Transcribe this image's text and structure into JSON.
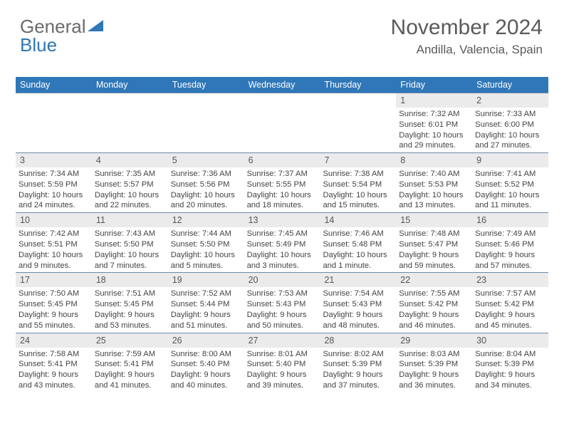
{
  "brand": {
    "part1": "General",
    "part2": "Blue"
  },
  "header": {
    "title": "November 2024",
    "subtitle": "Andilla, Valencia, Spain"
  },
  "colors": {
    "header_bar": "#2f77b8",
    "day_header_bg": "#ebebeb",
    "rule": "#6b8ba8",
    "text": "#444444",
    "brand_gray": "#6a6a6a",
    "brand_blue": "#2f77b8"
  },
  "fonts": {
    "body_pt": 11,
    "title_pt": 30,
    "subtitle_pt": 17,
    "dow_pt": 12.5
  },
  "days_of_week": [
    "Sunday",
    "Monday",
    "Tuesday",
    "Wednesday",
    "Thursday",
    "Friday",
    "Saturday"
  ],
  "weeks": [
    [
      {
        "num": "",
        "sunrise": "",
        "sunset": "",
        "daylight": ""
      },
      {
        "num": "",
        "sunrise": "",
        "sunset": "",
        "daylight": ""
      },
      {
        "num": "",
        "sunrise": "",
        "sunset": "",
        "daylight": ""
      },
      {
        "num": "",
        "sunrise": "",
        "sunset": "",
        "daylight": ""
      },
      {
        "num": "",
        "sunrise": "",
        "sunset": "",
        "daylight": ""
      },
      {
        "num": "1",
        "sunrise": "Sunrise: 7:32 AM",
        "sunset": "Sunset: 6:01 PM",
        "daylight": "Daylight: 10 hours and 29 minutes."
      },
      {
        "num": "2",
        "sunrise": "Sunrise: 7:33 AM",
        "sunset": "Sunset: 6:00 PM",
        "daylight": "Daylight: 10 hours and 27 minutes."
      }
    ],
    [
      {
        "num": "3",
        "sunrise": "Sunrise: 7:34 AM",
        "sunset": "Sunset: 5:59 PM",
        "daylight": "Daylight: 10 hours and 24 minutes."
      },
      {
        "num": "4",
        "sunrise": "Sunrise: 7:35 AM",
        "sunset": "Sunset: 5:57 PM",
        "daylight": "Daylight: 10 hours and 22 minutes."
      },
      {
        "num": "5",
        "sunrise": "Sunrise: 7:36 AM",
        "sunset": "Sunset: 5:56 PM",
        "daylight": "Daylight: 10 hours and 20 minutes."
      },
      {
        "num": "6",
        "sunrise": "Sunrise: 7:37 AM",
        "sunset": "Sunset: 5:55 PM",
        "daylight": "Daylight: 10 hours and 18 minutes."
      },
      {
        "num": "7",
        "sunrise": "Sunrise: 7:38 AM",
        "sunset": "Sunset: 5:54 PM",
        "daylight": "Daylight: 10 hours and 15 minutes."
      },
      {
        "num": "8",
        "sunrise": "Sunrise: 7:40 AM",
        "sunset": "Sunset: 5:53 PM",
        "daylight": "Daylight: 10 hours and 13 minutes."
      },
      {
        "num": "9",
        "sunrise": "Sunrise: 7:41 AM",
        "sunset": "Sunset: 5:52 PM",
        "daylight": "Daylight: 10 hours and 11 minutes."
      }
    ],
    [
      {
        "num": "10",
        "sunrise": "Sunrise: 7:42 AM",
        "sunset": "Sunset: 5:51 PM",
        "daylight": "Daylight: 10 hours and 9 minutes."
      },
      {
        "num": "11",
        "sunrise": "Sunrise: 7:43 AM",
        "sunset": "Sunset: 5:50 PM",
        "daylight": "Daylight: 10 hours and 7 minutes."
      },
      {
        "num": "12",
        "sunrise": "Sunrise: 7:44 AM",
        "sunset": "Sunset: 5:50 PM",
        "daylight": "Daylight: 10 hours and 5 minutes."
      },
      {
        "num": "13",
        "sunrise": "Sunrise: 7:45 AM",
        "sunset": "Sunset: 5:49 PM",
        "daylight": "Daylight: 10 hours and 3 minutes."
      },
      {
        "num": "14",
        "sunrise": "Sunrise: 7:46 AM",
        "sunset": "Sunset: 5:48 PM",
        "daylight": "Daylight: 10 hours and 1 minute."
      },
      {
        "num": "15",
        "sunrise": "Sunrise: 7:48 AM",
        "sunset": "Sunset: 5:47 PM",
        "daylight": "Daylight: 9 hours and 59 minutes."
      },
      {
        "num": "16",
        "sunrise": "Sunrise: 7:49 AM",
        "sunset": "Sunset: 5:46 PM",
        "daylight": "Daylight: 9 hours and 57 minutes."
      }
    ],
    [
      {
        "num": "17",
        "sunrise": "Sunrise: 7:50 AM",
        "sunset": "Sunset: 5:45 PM",
        "daylight": "Daylight: 9 hours and 55 minutes."
      },
      {
        "num": "18",
        "sunrise": "Sunrise: 7:51 AM",
        "sunset": "Sunset: 5:45 PM",
        "daylight": "Daylight: 9 hours and 53 minutes."
      },
      {
        "num": "19",
        "sunrise": "Sunrise: 7:52 AM",
        "sunset": "Sunset: 5:44 PM",
        "daylight": "Daylight: 9 hours and 51 minutes."
      },
      {
        "num": "20",
        "sunrise": "Sunrise: 7:53 AM",
        "sunset": "Sunset: 5:43 PM",
        "daylight": "Daylight: 9 hours and 50 minutes."
      },
      {
        "num": "21",
        "sunrise": "Sunrise: 7:54 AM",
        "sunset": "Sunset: 5:43 PM",
        "daylight": "Daylight: 9 hours and 48 minutes."
      },
      {
        "num": "22",
        "sunrise": "Sunrise: 7:55 AM",
        "sunset": "Sunset: 5:42 PM",
        "daylight": "Daylight: 9 hours and 46 minutes."
      },
      {
        "num": "23",
        "sunrise": "Sunrise: 7:57 AM",
        "sunset": "Sunset: 5:42 PM",
        "daylight": "Daylight: 9 hours and 45 minutes."
      }
    ],
    [
      {
        "num": "24",
        "sunrise": "Sunrise: 7:58 AM",
        "sunset": "Sunset: 5:41 PM",
        "daylight": "Daylight: 9 hours and 43 minutes."
      },
      {
        "num": "25",
        "sunrise": "Sunrise: 7:59 AM",
        "sunset": "Sunset: 5:41 PM",
        "daylight": "Daylight: 9 hours and 41 minutes."
      },
      {
        "num": "26",
        "sunrise": "Sunrise: 8:00 AM",
        "sunset": "Sunset: 5:40 PM",
        "daylight": "Daylight: 9 hours and 40 minutes."
      },
      {
        "num": "27",
        "sunrise": "Sunrise: 8:01 AM",
        "sunset": "Sunset: 5:40 PM",
        "daylight": "Daylight: 9 hours and 39 minutes."
      },
      {
        "num": "28",
        "sunrise": "Sunrise: 8:02 AM",
        "sunset": "Sunset: 5:39 PM",
        "daylight": "Daylight: 9 hours and 37 minutes."
      },
      {
        "num": "29",
        "sunrise": "Sunrise: 8:03 AM",
        "sunset": "Sunset: 5:39 PM",
        "daylight": "Daylight: 9 hours and 36 minutes."
      },
      {
        "num": "30",
        "sunrise": "Sunrise: 8:04 AM",
        "sunset": "Sunset: 5:39 PM",
        "daylight": "Daylight: 9 hours and 34 minutes."
      }
    ]
  ]
}
